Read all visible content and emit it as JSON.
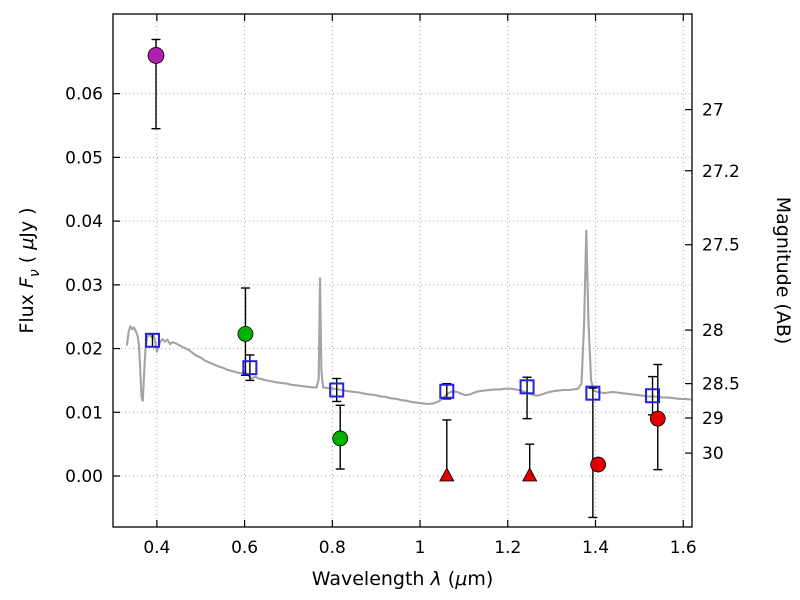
{
  "figure": {
    "background": "#ffffff",
    "xlabel_parts": [
      {
        "t": "Wavelength  "
      },
      {
        "t": "λ",
        "i": 1
      },
      {
        "t": " ("
      },
      {
        "t": "μ",
        "i": 1
      },
      {
        "t": "m)"
      }
    ],
    "ylabel_left_parts": [
      {
        "t": "Flux  "
      },
      {
        "t": "F",
        "i": 1
      },
      {
        "t": "ν",
        "i": 1,
        "sub": 1
      },
      {
        "t": "  ( "
      },
      {
        "t": "μ",
        "i": 1
      },
      {
        "t": "Jy )"
      }
    ],
    "ylabel_right": "Magnitude (AB)",
    "spine_color": "#000000",
    "grid_color": "#a8a8a8"
  },
  "chart_data": {
    "type": "scatter",
    "title": "",
    "xlabel": "Wavelength λ (μm)",
    "ylabel": "Flux Fν ( μJy )",
    "ylabel_right": "Magnitude (AB)",
    "xlim": [
      0.3,
      1.62
    ],
    "ylim": [
      -0.008,
      0.0725
    ],
    "grid": true,
    "legend": false,
    "x_ticks": [
      {
        "v": 0.4,
        "label": "0.4"
      },
      {
        "v": 0.6,
        "label": "0.6"
      },
      {
        "v": 0.8,
        "label": "0.8"
      },
      {
        "v": 1.0,
        "label": "1"
      },
      {
        "v": 1.2,
        "label": "1.2"
      },
      {
        "v": 1.4,
        "label": "1.4"
      },
      {
        "v": 1.6,
        "label": "1.6"
      }
    ],
    "y_ticks_left": [
      {
        "v": 0.0,
        "label": "0.00"
      },
      {
        "v": 0.01,
        "label": "0.01"
      },
      {
        "v": 0.02,
        "label": "0.02"
      },
      {
        "v": 0.03,
        "label": "0.03"
      },
      {
        "v": 0.04,
        "label": "0.04"
      },
      {
        "v": 0.05,
        "label": "0.05"
      },
      {
        "v": 0.06,
        "label": "0.06"
      }
    ],
    "y_ticks_right": [
      {
        "label": "27",
        "flux": 0.0575
      },
      {
        "label": "27.2",
        "flux": 0.0479
      },
      {
        "label": "27.5",
        "flux": 0.0363
      },
      {
        "label": "28",
        "flux": 0.0229
      },
      {
        "label": "28.5",
        "flux": 0.0145
      },
      {
        "label": "29",
        "flux": 0.0091
      },
      {
        "label": "30",
        "flux": 0.0036
      }
    ],
    "errorbar_color": "#000000",
    "model_spectrum": {
      "name": "model-sed-line",
      "color": "#a3a3a3",
      "width": 2.1,
      "points": [
        [
          0.332,
          0.0206
        ],
        [
          0.336,
          0.0228
        ],
        [
          0.34,
          0.0235
        ],
        [
          0.344,
          0.023
        ],
        [
          0.348,
          0.0233
        ],
        [
          0.352,
          0.0227
        ],
        [
          0.356,
          0.022
        ],
        [
          0.359,
          0.0207
        ],
        [
          0.362,
          0.0168
        ],
        [
          0.365,
          0.0125
        ],
        [
          0.368,
          0.0118
        ],
        [
          0.371,
          0.016
        ],
        [
          0.374,
          0.02
        ],
        [
          0.378,
          0.0218
        ],
        [
          0.383,
          0.0222
        ],
        [
          0.388,
          0.0218
        ],
        [
          0.392,
          0.0223
        ],
        [
          0.396,
          0.0212
        ],
        [
          0.4,
          0.0195
        ],
        [
          0.404,
          0.0203
        ],
        [
          0.408,
          0.0211
        ],
        [
          0.413,
          0.0215
        ],
        [
          0.418,
          0.0211
        ],
        [
          0.424,
          0.0214
        ],
        [
          0.43,
          0.0207
        ],
        [
          0.436,
          0.021
        ],
        [
          0.444,
          0.0208
        ],
        [
          0.452,
          0.0205
        ],
        [
          0.46,
          0.0202
        ],
        [
          0.47,
          0.0199
        ],
        [
          0.48,
          0.0194
        ],
        [
          0.49,
          0.0189
        ],
        [
          0.5,
          0.0186
        ],
        [
          0.51,
          0.0181
        ],
        [
          0.52,
          0.0178
        ],
        [
          0.53,
          0.0175
        ],
        [
          0.54,
          0.0172
        ],
        [
          0.55,
          0.017
        ],
        [
          0.56,
          0.0167
        ],
        [
          0.57,
          0.0165
        ],
        [
          0.58,
          0.0163
        ],
        [
          0.59,
          0.0161
        ],
        [
          0.6,
          0.0163
        ],
        [
          0.608,
          0.0158
        ],
        [
          0.616,
          0.0153
        ],
        [
          0.624,
          0.0156
        ],
        [
          0.632,
          0.0153
        ],
        [
          0.64,
          0.0152
        ],
        [
          0.65,
          0.015
        ],
        [
          0.66,
          0.0149
        ],
        [
          0.672,
          0.0147
        ],
        [
          0.684,
          0.0146
        ],
        [
          0.696,
          0.0145
        ],
        [
          0.708,
          0.0143
        ],
        [
          0.72,
          0.0142
        ],
        [
          0.732,
          0.0141
        ],
        [
          0.744,
          0.014
        ],
        [
          0.756,
          0.0139
        ],
        [
          0.764,
          0.0139
        ],
        [
          0.769,
          0.0152
        ],
        [
          0.772,
          0.031
        ],
        [
          0.775,
          0.0165
        ],
        [
          0.779,
          0.0139
        ],
        [
          0.79,
          0.0138
        ],
        [
          0.802,
          0.0137
        ],
        [
          0.814,
          0.0136
        ],
        [
          0.826,
          0.0134
        ],
        [
          0.838,
          0.0133
        ],
        [
          0.85,
          0.0132
        ],
        [
          0.862,
          0.0131
        ],
        [
          0.874,
          0.0129
        ],
        [
          0.886,
          0.0128
        ],
        [
          0.898,
          0.0127
        ],
        [
          0.91,
          0.0125
        ],
        [
          0.922,
          0.0124
        ],
        [
          0.934,
          0.0122
        ],
        [
          0.946,
          0.0121
        ],
        [
          0.958,
          0.0119
        ],
        [
          0.97,
          0.0118
        ],
        [
          0.982,
          0.0116
        ],
        [
          0.994,
          0.0115
        ],
        [
          1.006,
          0.0114
        ],
        [
          1.018,
          0.0113
        ],
        [
          1.03,
          0.0114
        ],
        [
          1.042,
          0.0117
        ],
        [
          1.054,
          0.0123
        ],
        [
          1.064,
          0.013
        ],
        [
          1.074,
          0.0133
        ],
        [
          1.084,
          0.0132
        ],
        [
          1.094,
          0.0129
        ],
        [
          1.104,
          0.0127
        ],
        [
          1.114,
          0.0128
        ],
        [
          1.124,
          0.0131
        ],
        [
          1.134,
          0.0133
        ],
        [
          1.146,
          0.0134
        ],
        [
          1.158,
          0.0135
        ],
        [
          1.17,
          0.0136
        ],
        [
          1.182,
          0.0136
        ],
        [
          1.194,
          0.0137
        ],
        [
          1.206,
          0.0137
        ],
        [
          1.218,
          0.0136
        ],
        [
          1.23,
          0.0134
        ],
        [
          1.242,
          0.0131
        ],
        [
          1.254,
          0.0128
        ],
        [
          1.266,
          0.0126
        ],
        [
          1.278,
          0.0128
        ],
        [
          1.29,
          0.0131
        ],
        [
          1.302,
          0.0133
        ],
        [
          1.314,
          0.0134
        ],
        [
          1.326,
          0.0135
        ],
        [
          1.338,
          0.0135
        ],
        [
          1.35,
          0.0136
        ],
        [
          1.36,
          0.0137
        ],
        [
          1.368,
          0.0145
        ],
        [
          1.374,
          0.024
        ],
        [
          1.379,
          0.0385
        ],
        [
          1.384,
          0.024
        ],
        [
          1.39,
          0.015
        ],
        [
          1.396,
          0.0134
        ],
        [
          1.404,
          0.0132
        ],
        [
          1.412,
          0.0131
        ],
        [
          1.42,
          0.013
        ],
        [
          1.43,
          0.0131
        ],
        [
          1.44,
          0.0132
        ],
        [
          1.45,
          0.0131
        ],
        [
          1.46,
          0.013
        ],
        [
          1.472,
          0.0129
        ],
        [
          1.484,
          0.0128
        ],
        [
          1.496,
          0.0127
        ],
        [
          1.508,
          0.0126
        ],
        [
          1.52,
          0.0125
        ],
        [
          1.532,
          0.0125
        ],
        [
          1.544,
          0.0124
        ],
        [
          1.556,
          0.0123
        ],
        [
          1.568,
          0.0123
        ],
        [
          1.58,
          0.0122
        ],
        [
          1.592,
          0.0121
        ],
        [
          1.604,
          0.0121
        ],
        [
          1.616,
          0.012
        ]
      ]
    },
    "series": [
      {
        "name": "blue-open-squares",
        "marker": "square-open",
        "color": "#2222dd",
        "size": 13,
        "points": [
          {
            "x": 0.39,
            "y": 0.0213,
            "ep": 0.001,
            "em": 0.001
          },
          {
            "x": 0.612,
            "y": 0.017,
            "ep": 0.002,
            "em": 0.002
          },
          {
            "x": 0.81,
            "y": 0.0135,
            "ep": 0.0018,
            "em": 0.0018
          },
          {
            "x": 1.061,
            "y": 0.0133,
            "ep": 0.0012,
            "em": 0.0012
          },
          {
            "x": 1.244,
            "y": 0.014,
            "ep": 0.0015,
            "em": 0.005
          },
          {
            "x": 1.394,
            "y": 0.013,
            "ep": 0.0008,
            "em": 0.0195
          },
          {
            "x": 1.53,
            "y": 0.0126,
            "ep": 0.003,
            "em": 0.003
          }
        ]
      },
      {
        "name": "green-circles",
        "marker": "circle",
        "color": "#00b100",
        "size": 15,
        "points": [
          {
            "x": 0.602,
            "y": 0.0223,
            "ep": 0.0072,
            "em": 0.0065
          },
          {
            "x": 0.818,
            "y": 0.0059,
            "ep": 0.0052,
            "em": 0.0048
          }
        ]
      },
      {
        "name": "magenta-circle",
        "marker": "circle",
        "color": "#b020b0",
        "size": 16,
        "points": [
          {
            "x": 0.398,
            "y": 0.066,
            "ep": 0.0025,
            "em": 0.0115
          }
        ]
      },
      {
        "name": "red-upper-limit-triangles",
        "marker": "triangle-up",
        "color": "#e00000",
        "size": 14,
        "points": [
          {
            "x": 1.061,
            "y": 0.0,
            "ep": 0.0088
          },
          {
            "x": 1.25,
            "y": 0.0,
            "ep": 0.005
          }
        ]
      },
      {
        "name": "red-circles",
        "marker": "circle",
        "color": "#e00000",
        "size": 15,
        "points": [
          {
            "x": 1.406,
            "y": 0.0018
          },
          {
            "x": 1.542,
            "y": 0.009,
            "ep": 0.0085,
            "em": 0.008
          }
        ]
      }
    ]
  }
}
